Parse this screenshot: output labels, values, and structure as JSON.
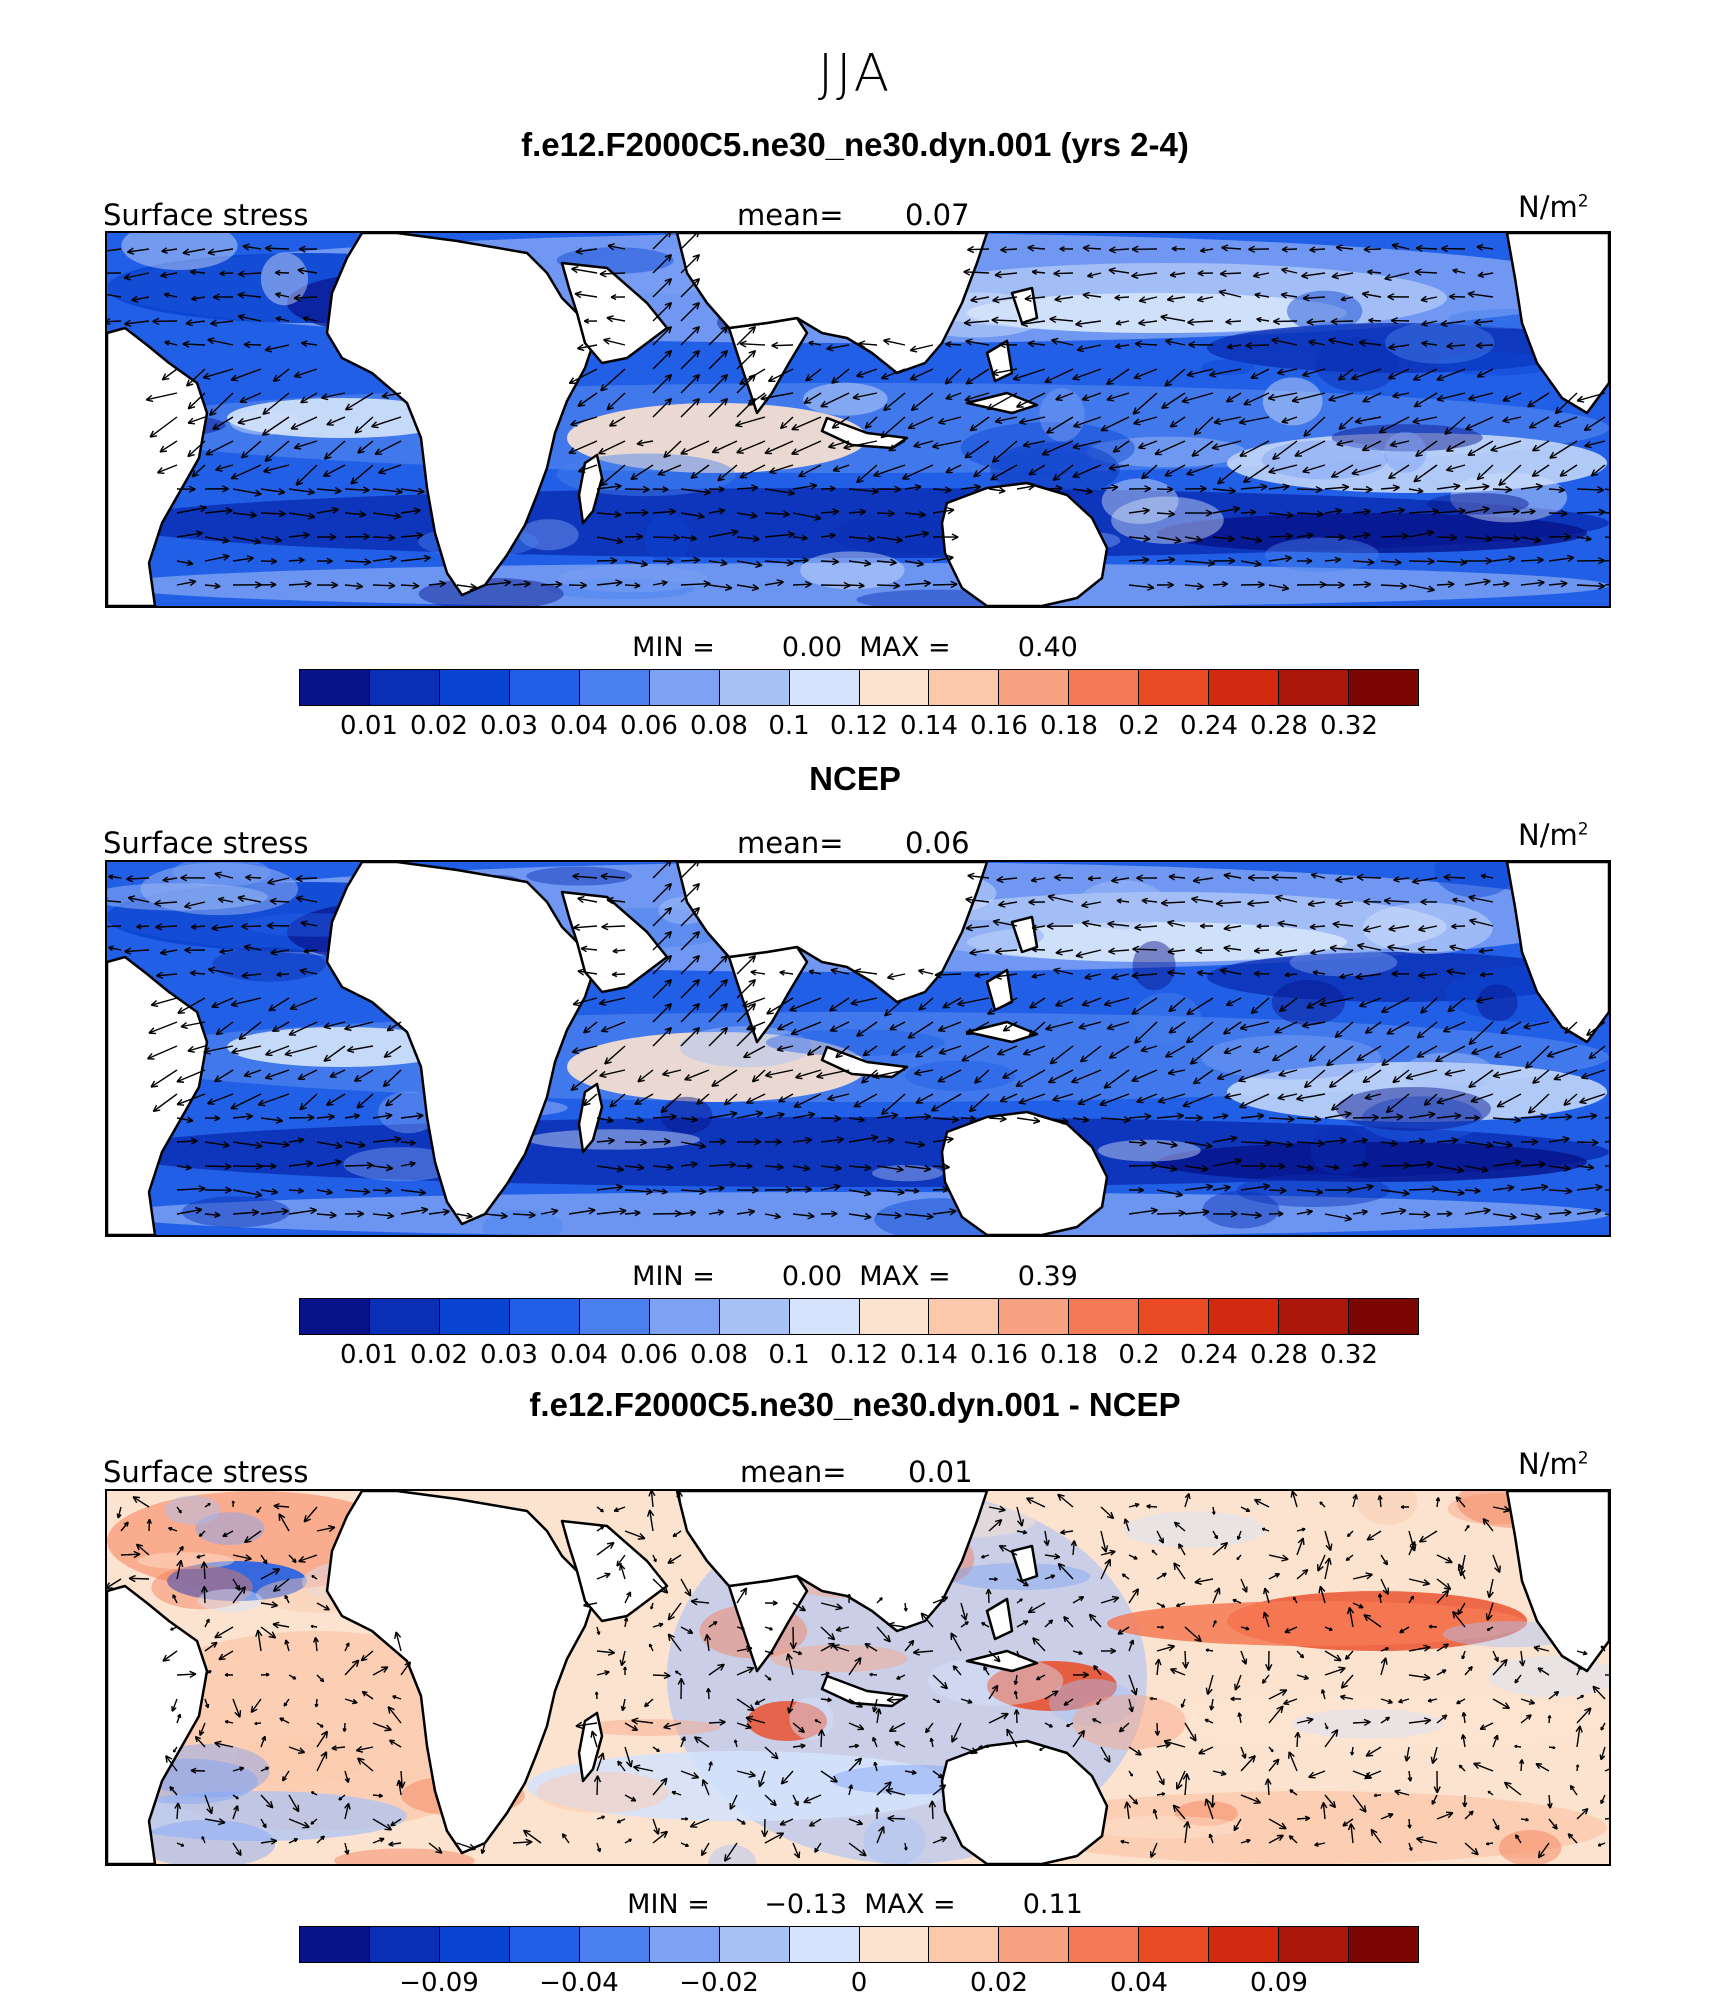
{
  "title": "JJA",
  "panels": [
    {
      "title": "f.e12.F2000C5.ne30_ne30.dyn.001 (yrs 2-4)",
      "left_label": "Surface stress",
      "mean_label": "mean=",
      "mean_value": "0.07",
      "units": "N/m",
      "units_sup": "2",
      "min_label": "MIN =",
      "min_value": "0.00",
      "max_label": "MAX =",
      "max_value": "0.40",
      "kind": "abs"
    },
    {
      "title": "NCEP",
      "left_label": "Surface stress",
      "mean_label": "mean=",
      "mean_value": "0.06",
      "units": "N/m",
      "units_sup": "2",
      "min_label": "MIN =",
      "min_value": "0.00",
      "max_label": "MAX =",
      "max_value": "0.39",
      "kind": "abs"
    },
    {
      "title": "f.e12.F2000C5.ne30_ne30.dyn.001 - NCEP",
      "left_label": "Surface stress",
      "mean_label": "mean=",
      "mean_value": "0.01",
      "units": "N/m",
      "units_sup": "2",
      "min_label": "MIN =",
      "min_value": "−0.13",
      "max_label": "MAX =",
      "max_value": "0.11",
      "kind": "diff"
    }
  ],
  "colorbar": {
    "colors": [
      "#08138a",
      "#0a2fb4",
      "#0a45d2",
      "#2160e6",
      "#4a80ee",
      "#7ea2f3",
      "#a8c2f6",
      "#d4e3fb",
      "#fce3cf",
      "#fcc8ac",
      "#f8a283",
      "#f47a55",
      "#ea4a24",
      "#d22a10",
      "#ad1709",
      "#7c0604"
    ],
    "abs_labels": [
      "0.01",
      "0.02",
      "0.03",
      "0.04",
      "0.06",
      "0.08",
      "0.1",
      "0.12",
      "0.14",
      "0.16",
      "0.18",
      "0.2",
      "0.24",
      "0.28",
      "0.32"
    ],
    "diff_labels": [
      "−0.09",
      "−0.04",
      "−0.02",
      "0",
      "0.02",
      "0.04",
      "0.09"
    ]
  }
}
